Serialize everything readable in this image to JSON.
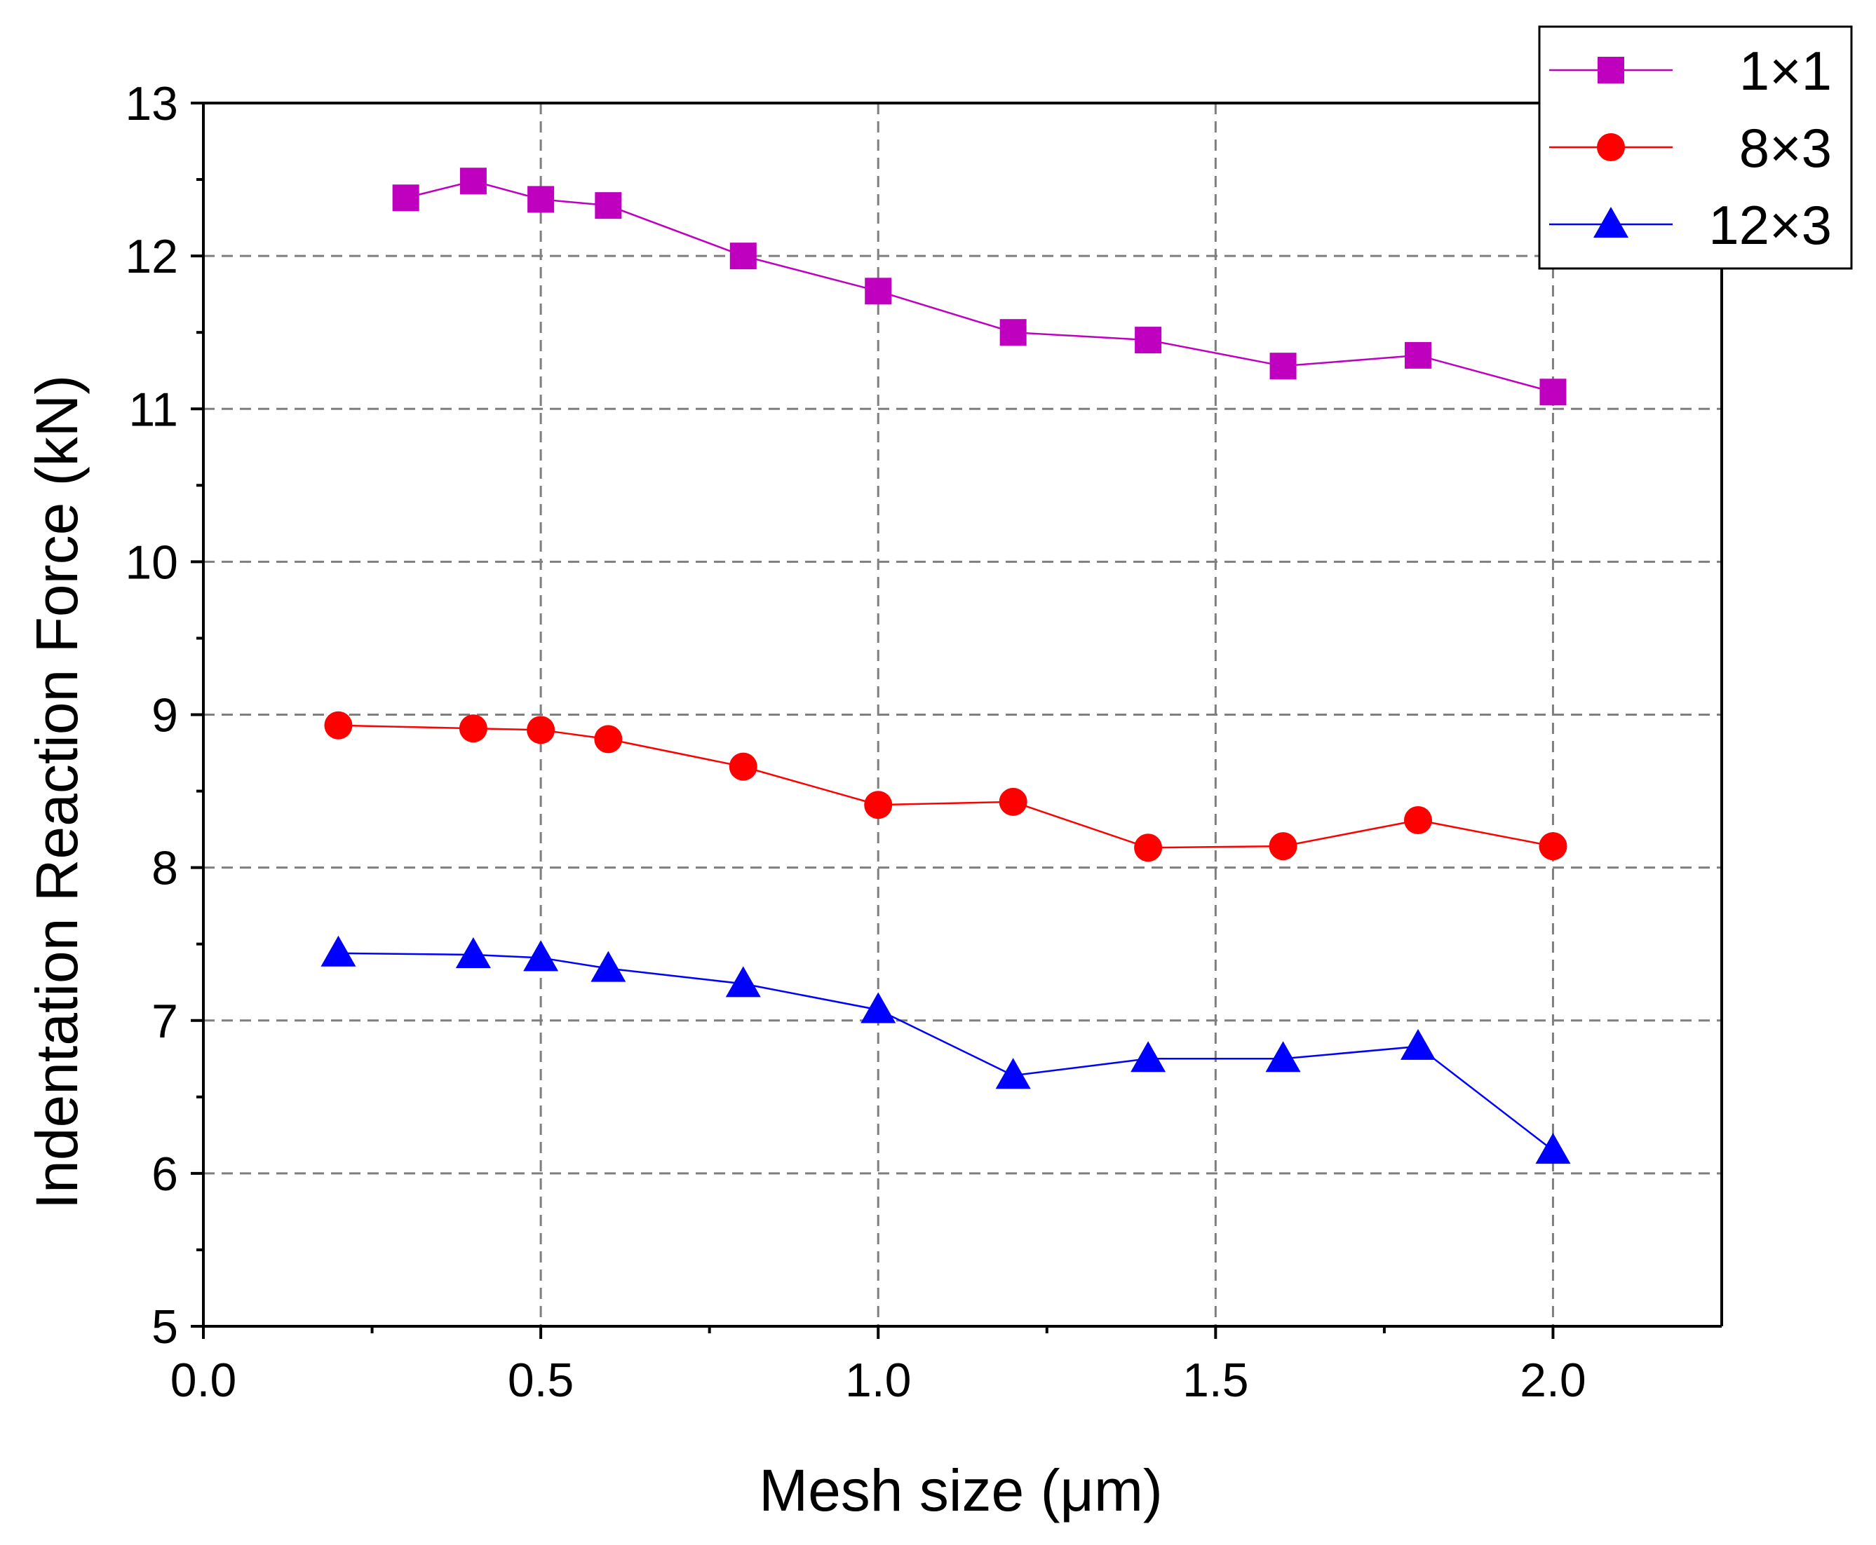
{
  "chart_data": {
    "type": "line",
    "title": "",
    "xlabel": "Mesh size (μm)",
    "ylabel": "Indentation Reaction Force (kN)",
    "xlim": [
      0.0,
      2.25
    ],
    "ylim": [
      5,
      13
    ],
    "xticks": [
      "0.0",
      "0.5",
      "1.0",
      "1.5",
      "2.0"
    ],
    "yticks": [
      "5",
      "6",
      "7",
      "8",
      "9",
      "10",
      "11",
      "12",
      "13"
    ],
    "grid": true,
    "legend_position": "top-right",
    "series": [
      {
        "name": "1×1",
        "color": "#bf00bf",
        "marker": "square",
        "x": [
          0.3,
          0.4,
          0.5,
          0.6,
          0.8,
          1.0,
          1.2,
          1.4,
          1.6,
          1.8,
          2.0
        ],
        "y": [
          12.38,
          12.49,
          12.37,
          12.33,
          12.0,
          11.77,
          11.5,
          11.45,
          11.28,
          11.35,
          11.11
        ]
      },
      {
        "name": "8×3",
        "color": "#ff0000",
        "marker": "circle",
        "x": [
          0.2,
          0.4,
          0.5,
          0.6,
          0.8,
          1.0,
          1.2,
          1.4,
          1.6,
          1.8,
          2.0
        ],
        "y": [
          8.93,
          8.91,
          8.9,
          8.84,
          8.66,
          8.41,
          8.43,
          8.13,
          8.14,
          8.31,
          8.14
        ]
      },
      {
        "name": "12×3",
        "color": "#0000ff",
        "marker": "triangle",
        "x": [
          0.2,
          0.4,
          0.5,
          0.6,
          0.8,
          1.0,
          1.2,
          1.4,
          1.6,
          1.8,
          2.0
        ],
        "y": [
          7.44,
          7.43,
          7.41,
          7.34,
          7.24,
          7.07,
          6.64,
          6.75,
          6.75,
          6.83,
          6.15
        ]
      }
    ]
  }
}
